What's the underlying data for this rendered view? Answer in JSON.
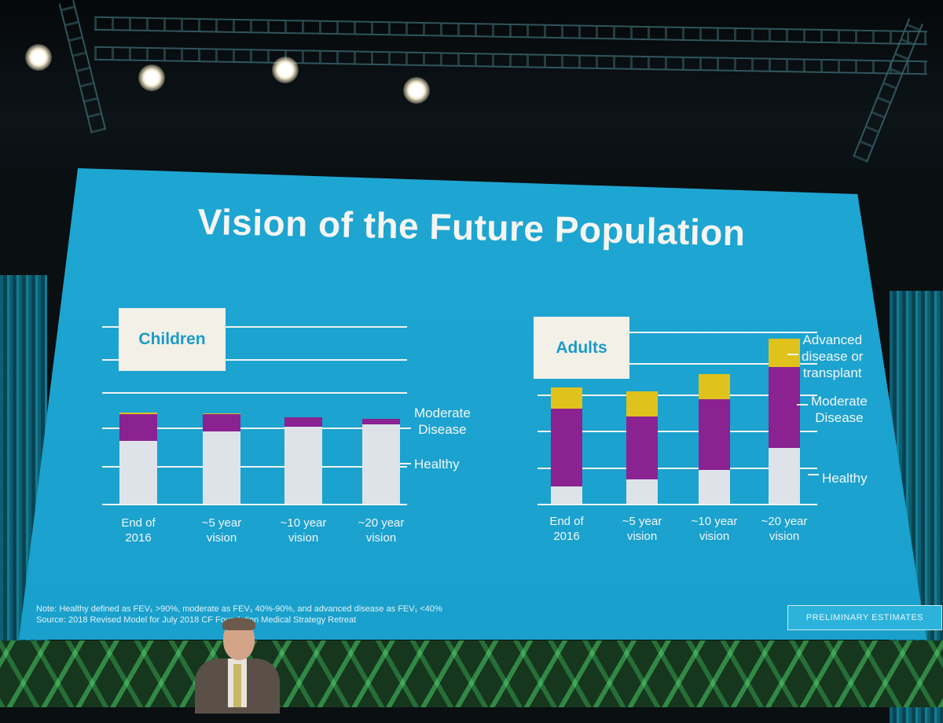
{
  "slide": {
    "title": "Vision of the Future Population",
    "note": "Note: Healthy defined as FEV₁ >90%, moderate as FEV₁ 40%-90%, and advanced disease as FEV₁ <40%",
    "source": "Source: 2018 Revised Model for July 2018 CF Foundation Medical Strategy Retreat",
    "badge": "PRELIMINARY ESTIMATES"
  },
  "colors": {
    "healthy": "#dde3e8",
    "moderate": "#8a2291",
    "advanced": "#e0c21c",
    "background": "#1ea6d2"
  },
  "chart_data": [
    {
      "type": "bar",
      "stacked": true,
      "title": "Children",
      "categories": [
        [
          "End of",
          "2016"
        ],
        [
          "~5 year",
          "vision"
        ],
        [
          "~10 year",
          "vision"
        ],
        [
          "~20 year",
          "vision"
        ]
      ],
      "series": [
        {
          "name": "Healthy",
          "values": [
            80,
            92,
            98,
            101
          ]
        },
        {
          "name": "Moderate Disease",
          "values": [
            34,
            22,
            12,
            7
          ]
        },
        {
          "name": "Advanced disease or transplant",
          "values": [
            2,
            1,
            0,
            0
          ]
        }
      ],
      "legend": [
        "Healthy",
        "Moderate Disease"
      ],
      "ylim": [
        0,
        240
      ],
      "grid": true
    },
    {
      "type": "bar",
      "stacked": true,
      "title": "Adults",
      "categories": [
        [
          "End of",
          "2016"
        ],
        [
          "~5 year",
          "vision"
        ],
        [
          "~10 year",
          "vision"
        ],
        [
          "~20 year",
          "vision"
        ]
      ],
      "series": [
        {
          "name": "Healthy",
          "values": [
            22,
            31,
            43,
            71
          ]
        },
        {
          "name": "Moderate Disease",
          "values": [
            99,
            80,
            90,
            103
          ]
        },
        {
          "name": "Advanced disease or transplant",
          "values": [
            27,
            32,
            32,
            36
          ]
        }
      ],
      "legend": [
        "Advanced disease or transplant",
        "Moderate Disease",
        "Healthy"
      ],
      "ylim": [
        0,
        240
      ],
      "grid": true
    }
  ]
}
